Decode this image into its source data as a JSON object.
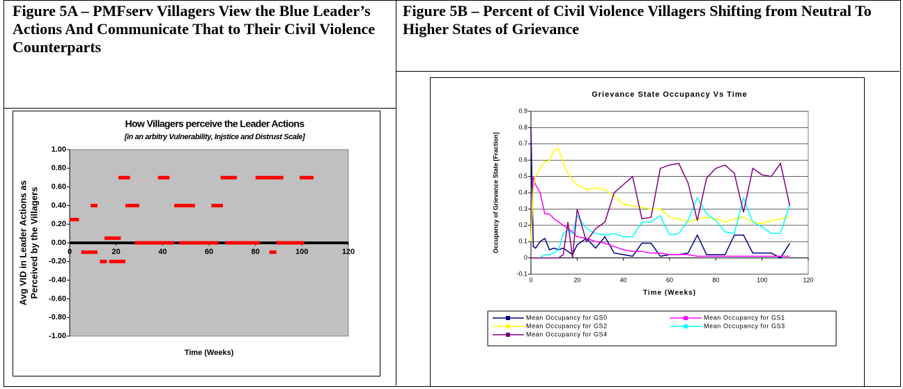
{
  "headings": [
    "Figure 5A – PMFserv Villagers View the Blue Leader’s Actions And Communicate That to Their Civil Violence Counterparts",
    "Figure 5B – Percent of  Civil Violence Villagers Shifting from Neutral To Higher States of Grievance"
  ],
  "chart_data": [
    {
      "type": "segment",
      "title": "How Villagers perceive the Leader Actions",
      "subtitle": "[in an arbitry Vulnerability, Injstice and Distrust Scale]",
      "xlabel": "Time (Weeks)",
      "ylabel": [
        "Avg VID in Leader Actions as",
        "Perceived by the Villagers"
      ],
      "x_start": [
        0,
        5,
        9,
        13,
        15,
        17,
        21,
        24,
        28,
        38,
        45,
        47,
        61,
        65,
        67,
        80,
        86,
        89,
        99
      ],
      "x_end": [
        4,
        12,
        12,
        16,
        22,
        24,
        26,
        30,
        45,
        43,
        54,
        64,
        66,
        72,
        82,
        92,
        89,
        101,
        105
      ],
      "values": [
        0.25,
        -0.1,
        0.4,
        -0.2,
        0.05,
        -0.2,
        0.7,
        0.4,
        0,
        0.7,
        0.4,
        0,
        0.4,
        0.7,
        0,
        0.7,
        -0.1,
        0,
        0.7
      ],
      "color": "#ff0000",
      "xlim": [
        0,
        120
      ],
      "xticks": [
        0,
        20,
        40,
        60,
        80,
        100,
        120
      ],
      "ylim": [
        -1,
        1
      ],
      "yticks": [
        {
          "value": -1,
          "label": "-1.00"
        },
        {
          "value": -0.8,
          "label": "-0.80"
        },
        {
          "value": -0.6,
          "label": "-0.60"
        },
        {
          "value": -0.4,
          "label": "-0.40"
        },
        {
          "value": -0.2,
          "label": "-0.20"
        },
        {
          "value": 0,
          "label": "0.00"
        },
        {
          "value": 0.2,
          "label": "0.20"
        },
        {
          "value": 0.4,
          "label": "0.40"
        },
        {
          "value": 0.6,
          "label": "0.60"
        },
        {
          "value": 0.8,
          "label": "0.80"
        },
        {
          "value": 1,
          "label": "1.00"
        }
      ],
      "grid": false
    },
    {
      "type": "line",
      "title": "Grievance State Occupancy Vs Time",
      "xlabel": "Time (Weeks)",
      "ylabel": "Occupancy of Grievance State [Fraction]",
      "x": [
        0,
        1,
        2,
        4,
        6,
        8,
        10,
        12,
        14,
        16,
        18,
        20,
        24,
        28,
        32,
        36,
        40,
        44,
        48,
        52,
        56,
        60,
        64,
        68,
        72,
        76,
        80,
        84,
        88,
        92,
        96,
        100,
        104,
        108,
        112
      ],
      "series": [
        {
          "name": "Mean Occupancy for GS0",
          "color": "#000080",
          "values": [
            0.8,
            0.07,
            0.06,
            0.1,
            0.12,
            0.05,
            0.06,
            0.05,
            0.06,
            0.04,
            0.02,
            0.08,
            0.12,
            0.06,
            0.13,
            0.03,
            0.02,
            0.01,
            0.09,
            0.09,
            0.01,
            0.02,
            0.02,
            0.03,
            0.14,
            0.02,
            0.02,
            0.02,
            0.14,
            0.14,
            0.03,
            0.03,
            0.03,
            0,
            0.09
          ]
        },
        {
          "name": "Mean Occupancy for GS1",
          "color": "#ff00ff",
          "values": [
            0.1,
            0.5,
            0.45,
            0.4,
            0.27,
            0.27,
            0.24,
            0.22,
            0.2,
            0.18,
            0.16,
            0.13,
            0.12,
            0.1,
            0.09,
            0.07,
            0.05,
            0.04,
            0.04,
            0.03,
            0.03,
            0.02,
            0.02,
            0.02,
            0.01,
            0.01,
            0.01,
            0.01,
            0.01,
            0.01,
            0.01,
            0.01,
            0.01,
            0.01,
            0.01
          ]
        },
        {
          "name": "Mean Occupancy for GS2",
          "color": "#ffff00",
          "values": [
            0.1,
            0.42,
            0.5,
            0.55,
            0.59,
            0.6,
            0.66,
            0.67,
            0.58,
            0.52,
            0.48,
            0.45,
            0.42,
            0.43,
            0.42,
            0.38,
            0.33,
            0.32,
            0.31,
            0.3,
            0.3,
            0.25,
            0.24,
            0.22,
            0.24,
            0.25,
            0.24,
            0.22,
            0.24,
            0.25,
            0.22,
            0.21,
            0.23,
            0.24,
            0.25
          ]
        },
        {
          "name": "Mean Occupancy for GS3",
          "color": "#00ffff",
          "values": [
            0,
            0,
            0,
            0,
            0.02,
            0.02,
            0.03,
            0.05,
            0.15,
            0.17,
            0.15,
            0.26,
            0.18,
            0.15,
            0.14,
            0.15,
            0.13,
            0.13,
            0.22,
            0.22,
            0.26,
            0.14,
            0.15,
            0.23,
            0.37,
            0.27,
            0.23,
            0.16,
            0.15,
            0.37,
            0.22,
            0.19,
            0.15,
            0.15,
            0.33
          ]
        },
        {
          "name": "Mean Occupancy for GS4",
          "color": "#800080",
          "values": [
            0,
            0,
            0,
            0,
            0,
            0,
            0,
            0,
            0.02,
            0.22,
            0,
            0.3,
            0.1,
            0.18,
            0.22,
            0.4,
            0.45,
            0.5,
            0.24,
            0.25,
            0.55,
            0.57,
            0.58,
            0.46,
            0.23,
            0.49,
            0.55,
            0.57,
            0.52,
            0.28,
            0.55,
            0.51,
            0.5,
            0.58,
            0.32
          ]
        }
      ],
      "xlim": [
        0,
        120
      ],
      "xticks": [
        0,
        20,
        40,
        60,
        80,
        100,
        120
      ],
      "ylim": [
        -0.1,
        0.9
      ],
      "yticks": [
        -0.1,
        0,
        0.1,
        0.2,
        0.3,
        0.4,
        0.5,
        0.6,
        0.7,
        0.8,
        0.9
      ],
      "grid": true
    }
  ]
}
